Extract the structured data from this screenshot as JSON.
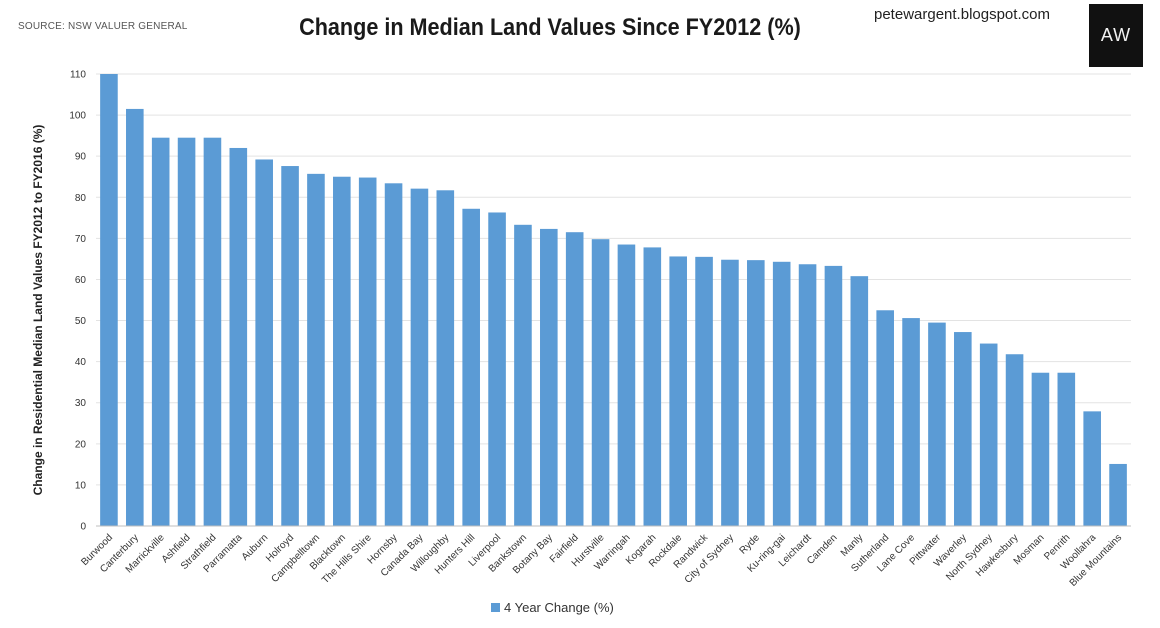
{
  "header": {
    "source": "SOURCE: NSW VALUER GENERAL",
    "blog": "petewargent.blogspot.com",
    "logo_text": "AW"
  },
  "chart_data": {
    "type": "bar",
    "title": "Change in Median Land Values Since FY2012 (%)",
    "xlabel": "",
    "ylabel": "Change in Residential Median Land Values FY2012 to FY2016 (%)",
    "ylim": [
      0,
      110
    ],
    "yticks": [
      0,
      10,
      20,
      30,
      40,
      50,
      60,
      70,
      80,
      90,
      100,
      110
    ],
    "grid": true,
    "legend_position": "bottom",
    "bar_color": "#5b9bd5",
    "categories": [
      "Burwood",
      "Canterbury",
      "Marrickville",
      "Ashfield",
      "Strathfield",
      "Parramatta",
      "Auburn",
      "Holroyd",
      "Campbelltown",
      "Blacktown",
      "The Hills Shire",
      "Hornsby",
      "Canada Bay",
      "Willoughby",
      "Hunters Hill",
      "Liverpool",
      "Bankstown",
      "Botany Bay",
      "Fairfield",
      "Hurstville",
      "Warringah",
      "Kogarah",
      "Rockdale",
      "Randwick",
      "City of Sydney",
      "Ryde",
      "Ku-ring-gai",
      "Leichardt",
      "Camden",
      "Manly",
      "Sutherland",
      "Lane Cove",
      "Pittwater",
      "Waverley",
      "North Sydney",
      "Hawkesbury",
      "Mosman",
      "Penrith",
      "Woollahra",
      "Blue Mountains"
    ],
    "series": [
      {
        "name": "4 Year Change (%)",
        "values": [
          110,
          101.5,
          94.5,
          94.5,
          94.5,
          92,
          89.2,
          87.6,
          85.7,
          85,
          84.8,
          83.4,
          82.1,
          81.7,
          77.2,
          76.3,
          73.3,
          72.3,
          71.5,
          69.8,
          68.5,
          67.8,
          65.6,
          65.5,
          64.8,
          64.7,
          64.3,
          63.7,
          63.3,
          60.8,
          52.5,
          50.6,
          49.5,
          47.2,
          44.4,
          41.8,
          37.3,
          37.3,
          27.9,
          15.1
        ]
      }
    ]
  }
}
